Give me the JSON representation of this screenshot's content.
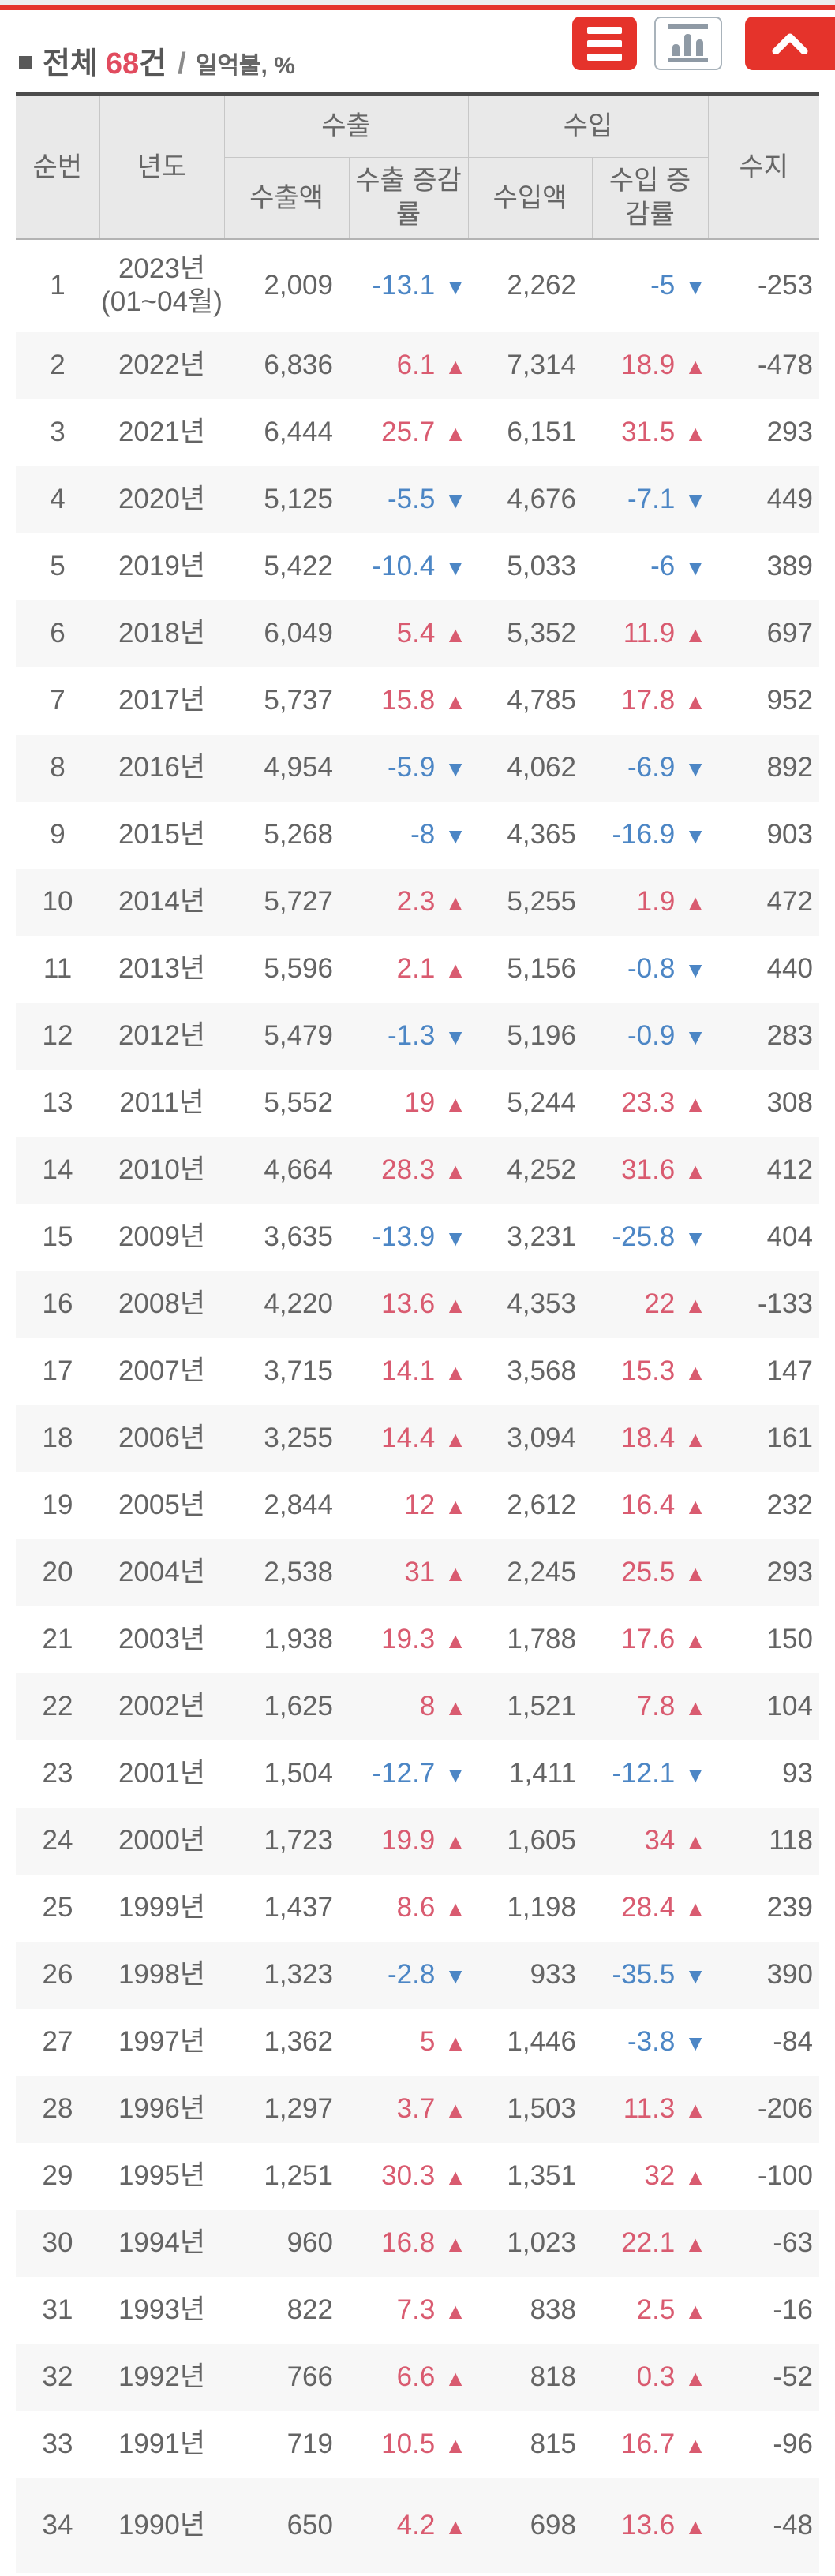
{
  "page": {
    "title": {
      "prefix": "전체",
      "count": "68",
      "count_suffix": "건",
      "separator": "/",
      "unit": "일억불, %"
    },
    "colors": {
      "accent_red": "#e5332b",
      "rate_up": "#d95b70",
      "rate_down": "#4c86c5",
      "header_bg": "#e9e9e9",
      "alt_row_bg": "#f7f7f7"
    }
  },
  "table": {
    "headers": {
      "no": "순번",
      "year": "년도",
      "export_group": "수출",
      "import_group": "수입",
      "export_amount": "수출액",
      "export_rate": "수출 증감률",
      "import_amount": "수입액",
      "import_rate": "수입 증감률",
      "balance": "수지"
    },
    "icons": {
      "up": "▲",
      "down": "▼"
    },
    "rows": [
      {
        "no": "1",
        "year": "2023년",
        "year_note": "(01~04월)",
        "export": "2,009",
        "export_rate": "-13.1",
        "export_dir": "down",
        "import": "2,262",
        "import_rate": "-5",
        "import_dir": "down",
        "balance": "-253"
      },
      {
        "no": "2",
        "year": "2022년",
        "export": "6,836",
        "export_rate": "6.1",
        "export_dir": "up",
        "import": "7,314",
        "import_rate": "18.9",
        "import_dir": "up",
        "balance": "-478"
      },
      {
        "no": "3",
        "year": "2021년",
        "export": "6,444",
        "export_rate": "25.7",
        "export_dir": "up",
        "import": "6,151",
        "import_rate": "31.5",
        "import_dir": "up",
        "balance": "293"
      },
      {
        "no": "4",
        "year": "2020년",
        "export": "5,125",
        "export_rate": "-5.5",
        "export_dir": "down",
        "import": "4,676",
        "import_rate": "-7.1",
        "import_dir": "down",
        "balance": "449"
      },
      {
        "no": "5",
        "year": "2019년",
        "export": "5,422",
        "export_rate": "-10.4",
        "export_dir": "down",
        "import": "5,033",
        "import_rate": "-6",
        "import_dir": "down",
        "balance": "389"
      },
      {
        "no": "6",
        "year": "2018년",
        "export": "6,049",
        "export_rate": "5.4",
        "export_dir": "up",
        "import": "5,352",
        "import_rate": "11.9",
        "import_dir": "up",
        "balance": "697"
      },
      {
        "no": "7",
        "year": "2017년",
        "export": "5,737",
        "export_rate": "15.8",
        "export_dir": "up",
        "import": "4,785",
        "import_rate": "17.8",
        "import_dir": "up",
        "balance": "952"
      },
      {
        "no": "8",
        "year": "2016년",
        "export": "4,954",
        "export_rate": "-5.9",
        "export_dir": "down",
        "import": "4,062",
        "import_rate": "-6.9",
        "import_dir": "down",
        "balance": "892"
      },
      {
        "no": "9",
        "year": "2015년",
        "export": "5,268",
        "export_rate": "-8",
        "export_dir": "down",
        "import": "4,365",
        "import_rate": "-16.9",
        "import_dir": "down",
        "balance": "903"
      },
      {
        "no": "10",
        "year": "2014년",
        "export": "5,727",
        "export_rate": "2.3",
        "export_dir": "up",
        "import": "5,255",
        "import_rate": "1.9",
        "import_dir": "up",
        "balance": "472"
      },
      {
        "no": "11",
        "year": "2013년",
        "export": "5,596",
        "export_rate": "2.1",
        "export_dir": "up",
        "import": "5,156",
        "import_rate": "-0.8",
        "import_dir": "down",
        "balance": "440"
      },
      {
        "no": "12",
        "year": "2012년",
        "export": "5,479",
        "export_rate": "-1.3",
        "export_dir": "down",
        "import": "5,196",
        "import_rate": "-0.9",
        "import_dir": "down",
        "balance": "283"
      },
      {
        "no": "13",
        "year": "2011년",
        "export": "5,552",
        "export_rate": "19",
        "export_dir": "up",
        "import": "5,244",
        "import_rate": "23.3",
        "import_dir": "up",
        "balance": "308"
      },
      {
        "no": "14",
        "year": "2010년",
        "export": "4,664",
        "export_rate": "28.3",
        "export_dir": "up",
        "import": "4,252",
        "import_rate": "31.6",
        "import_dir": "up",
        "balance": "412"
      },
      {
        "no": "15",
        "year": "2009년",
        "export": "3,635",
        "export_rate": "-13.9",
        "export_dir": "down",
        "import": "3,231",
        "import_rate": "-25.8",
        "import_dir": "down",
        "balance": "404"
      },
      {
        "no": "16",
        "year": "2008년",
        "export": "4,220",
        "export_rate": "13.6",
        "export_dir": "up",
        "import": "4,353",
        "import_rate": "22",
        "import_dir": "up",
        "balance": "-133"
      },
      {
        "no": "17",
        "year": "2007년",
        "export": "3,715",
        "export_rate": "14.1",
        "export_dir": "up",
        "import": "3,568",
        "import_rate": "15.3",
        "import_dir": "up",
        "balance": "147"
      },
      {
        "no": "18",
        "year": "2006년",
        "export": "3,255",
        "export_rate": "14.4",
        "export_dir": "up",
        "import": "3,094",
        "import_rate": "18.4",
        "import_dir": "up",
        "balance": "161"
      },
      {
        "no": "19",
        "year": "2005년",
        "export": "2,844",
        "export_rate": "12",
        "export_dir": "up",
        "import": "2,612",
        "import_rate": "16.4",
        "import_dir": "up",
        "balance": "232"
      },
      {
        "no": "20",
        "year": "2004년",
        "export": "2,538",
        "export_rate": "31",
        "export_dir": "up",
        "import": "2,245",
        "import_rate": "25.5",
        "import_dir": "up",
        "balance": "293"
      },
      {
        "no": "21",
        "year": "2003년",
        "export": "1,938",
        "export_rate": "19.3",
        "export_dir": "up",
        "import": "1,788",
        "import_rate": "17.6",
        "import_dir": "up",
        "balance": "150"
      },
      {
        "no": "22",
        "year": "2002년",
        "export": "1,625",
        "export_rate": "8",
        "export_dir": "up",
        "import": "1,521",
        "import_rate": "7.8",
        "import_dir": "up",
        "balance": "104"
      },
      {
        "no": "23",
        "year": "2001년",
        "export": "1,504",
        "export_rate": "-12.7",
        "export_dir": "down",
        "import": "1,411",
        "import_rate": "-12.1",
        "import_dir": "down",
        "balance": "93"
      },
      {
        "no": "24",
        "year": "2000년",
        "export": "1,723",
        "export_rate": "19.9",
        "export_dir": "up",
        "import": "1,605",
        "import_rate": "34",
        "import_dir": "up",
        "balance": "118"
      },
      {
        "no": "25",
        "year": "1999년",
        "export": "1,437",
        "export_rate": "8.6",
        "export_dir": "up",
        "import": "1,198",
        "import_rate": "28.4",
        "import_dir": "up",
        "balance": "239"
      },
      {
        "no": "26",
        "year": "1998년",
        "export": "1,323",
        "export_rate": "-2.8",
        "export_dir": "down",
        "import": "933",
        "import_rate": "-35.5",
        "import_dir": "down",
        "balance": "390"
      },
      {
        "no": "27",
        "year": "1997년",
        "export": "1,362",
        "export_rate": "5",
        "export_dir": "up",
        "import": "1,446",
        "import_rate": "-3.8",
        "import_dir": "down",
        "balance": "-84"
      },
      {
        "no": "28",
        "year": "1996년",
        "export": "1,297",
        "export_rate": "3.7",
        "export_dir": "up",
        "import": "1,503",
        "import_rate": "11.3",
        "import_dir": "up",
        "balance": "-206"
      },
      {
        "no": "29",
        "year": "1995년",
        "export": "1,251",
        "export_rate": "30.3",
        "export_dir": "up",
        "import": "1,351",
        "import_rate": "32",
        "import_dir": "up",
        "balance": "-100"
      },
      {
        "no": "30",
        "year": "1994년",
        "export": "960",
        "export_rate": "16.8",
        "export_dir": "up",
        "import": "1,023",
        "import_rate": "22.1",
        "import_dir": "up",
        "balance": "-63"
      },
      {
        "no": "31",
        "year": "1993년",
        "export": "822",
        "export_rate": "7.3",
        "export_dir": "up",
        "import": "838",
        "import_rate": "2.5",
        "import_dir": "up",
        "balance": "-16"
      },
      {
        "no": "32",
        "year": "1992년",
        "export": "766",
        "export_rate": "6.6",
        "export_dir": "up",
        "import": "818",
        "import_rate": "0.3",
        "import_dir": "up",
        "balance": "-52"
      },
      {
        "no": "33",
        "year": "1991년",
        "export": "719",
        "export_rate": "10.5",
        "export_dir": "up",
        "import": "815",
        "import_rate": "16.7",
        "import_dir": "up",
        "balance": "-96"
      },
      {
        "no": "34",
        "year": "1990년",
        "export": "650",
        "export_rate": "4.2",
        "export_dir": "up",
        "import": "698",
        "import_rate": "13.6",
        "import_dir": "up",
        "balance": "-48"
      }
    ]
  }
}
